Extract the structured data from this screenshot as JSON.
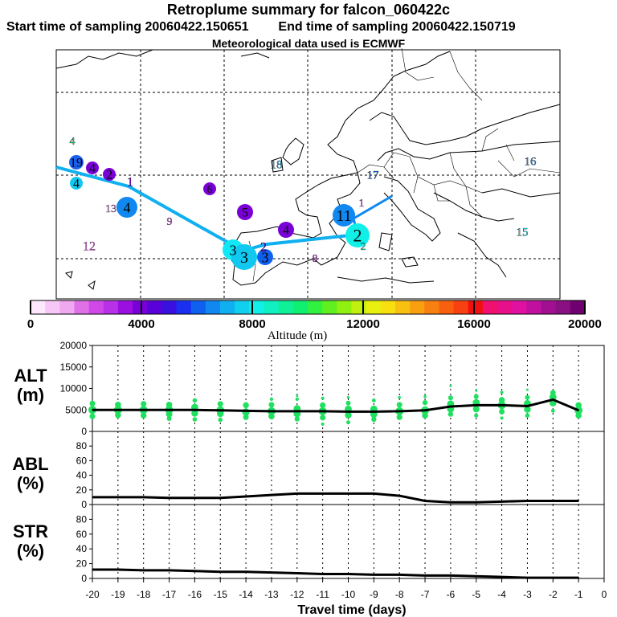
{
  "header": {
    "title": "Retroplume summary for falcon_060422c",
    "start_label": "Start time of sampling 20060422.150651",
    "end_label": "End time of sampling 20060422.150719",
    "met_label": "Meteorological data used is ECMWF"
  },
  "colorbar": {
    "label": "Altitude (m)",
    "ticks": [
      "0",
      "4000",
      "8000",
      "12000",
      "16000",
      "20000"
    ],
    "colors": [
      "#fde8fd",
      "#f7c8f7",
      "#f0a8f0",
      "#e070e8",
      "#d048e8",
      "#b830e8",
      "#9a10e0",
      "#7a00d8",
      "#5a00d8",
      "#3a10e0",
      "#1a30f0",
      "#1060f0",
      "#1088f0",
      "#10b0f0",
      "#10d0f0",
      "#10f0e8",
      "#10f0c0",
      "#10f098",
      "#10f070",
      "#30f040",
      "#60f020",
      "#90f010",
      "#c0f010",
      "#e8f010",
      "#f8e010",
      "#f8c010",
      "#f8a010",
      "#f88010",
      "#f86010",
      "#f84010",
      "#f01010",
      "#f01070",
      "#e8108a",
      "#e010a0",
      "#c010a0",
      "#a01090",
      "#881080",
      "#700070"
    ]
  },
  "map": {
    "labels": [
      {
        "text": "4",
        "color": "#10e060"
      },
      {
        "text": "19",
        "color": "#1a60f0"
      },
      {
        "text": "4",
        "color": "#7a00d8"
      },
      {
        "text": "2",
        "color": "#7a00d8"
      },
      {
        "text": "4",
        "color": "#10c8f0"
      },
      {
        "text": "1",
        "color": "#7a00d8"
      },
      {
        "text": "13",
        "color": "#e070e8"
      },
      {
        "text": "4",
        "color": "#1088f0"
      },
      {
        "text": "6",
        "color": "#7a00d8"
      },
      {
        "text": "9",
        "color": "#d048e8"
      },
      {
        "text": "12",
        "color": "#e070e8"
      },
      {
        "text": "5",
        "color": "#7a00d8"
      },
      {
        "text": "4",
        "color": "#7a00d8"
      },
      {
        "text": "18",
        "color": "#10b0f0"
      },
      {
        "text": "17",
        "color": "#1060f0"
      },
      {
        "text": "16",
        "color": "#1088f0"
      },
      {
        "text": "15",
        "color": "#10d0f0"
      },
      {
        "text": "1",
        "color": "#d048e8"
      },
      {
        "text": "11",
        "color": "#1088f0"
      },
      {
        "text": "2",
        "color": "#10f0e8"
      },
      {
        "text": "2",
        "color": "#10f0c0"
      },
      {
        "text": "3",
        "color": "#10e8f8"
      },
      {
        "text": "3",
        "color": "#10c8f0"
      },
      {
        "text": "3",
        "color": "#1060f0"
      },
      {
        "text": "2",
        "color": "#7a00d8"
      },
      {
        "text": "8",
        "color": "#d048e8"
      }
    ]
  },
  "panels": {
    "alt_label": "ALT\n(m)",
    "abl_label": "ABL\n(%)",
    "str_label": "STR\n(%)",
    "xlabel": "Travel time (days)"
  },
  "chart_data": {
    "type": "line",
    "title": "Retroplume summary for falcon_060422c",
    "xlabel": "Travel time (days)",
    "x": [
      -20,
      -19,
      -18,
      -17,
      -16,
      -15,
      -14,
      -13,
      -12,
      -11,
      -10,
      -9,
      -8,
      -7,
      -6,
      -5,
      -4,
      -3,
      -2,
      -1
    ],
    "xlim": [
      -20,
      0
    ],
    "xticks": [
      "-20",
      "-19",
      "-18",
      "-17",
      "-16",
      "-15",
      "-14",
      "-13",
      "-12",
      "-11",
      "-10",
      "-9",
      "-8",
      "-7",
      "-6",
      "-5",
      "-4",
      "-3",
      "-2",
      "-1",
      "0"
    ],
    "series": [
      {
        "name": "ALT (m)",
        "ylim": [
          0,
          20000
        ],
        "yticks": [
          "0",
          "5000",
          "10000",
          "15000",
          "20000"
        ],
        "values": [
          5000,
          5000,
          5000,
          5000,
          5000,
          4900,
          4800,
          4700,
          4700,
          4700,
          4600,
          4600,
          4700,
          4900,
          5800,
          6100,
          6100,
          5900,
          7400,
          4900
        ]
      },
      {
        "name": "ABL (%)",
        "ylim": [
          0,
          100
        ],
        "yticks": [
          "0",
          "20",
          "40",
          "60",
          "80"
        ],
        "values": [
          10,
          10,
          10,
          9,
          9,
          9,
          11,
          13,
          15,
          15,
          15,
          15,
          12,
          5,
          3,
          3,
          4,
          5,
          5,
          5
        ]
      },
      {
        "name": "STR (%)",
        "ylim": [
          0,
          100
        ],
        "yticks": [
          "0",
          "20",
          "40",
          "60",
          "80"
        ],
        "values": [
          12,
          12,
          11,
          11,
          10,
          9,
          9,
          8,
          7,
          6,
          6,
          5,
          5,
          4,
          4,
          3,
          2,
          1,
          1,
          1
        ]
      }
    ]
  }
}
